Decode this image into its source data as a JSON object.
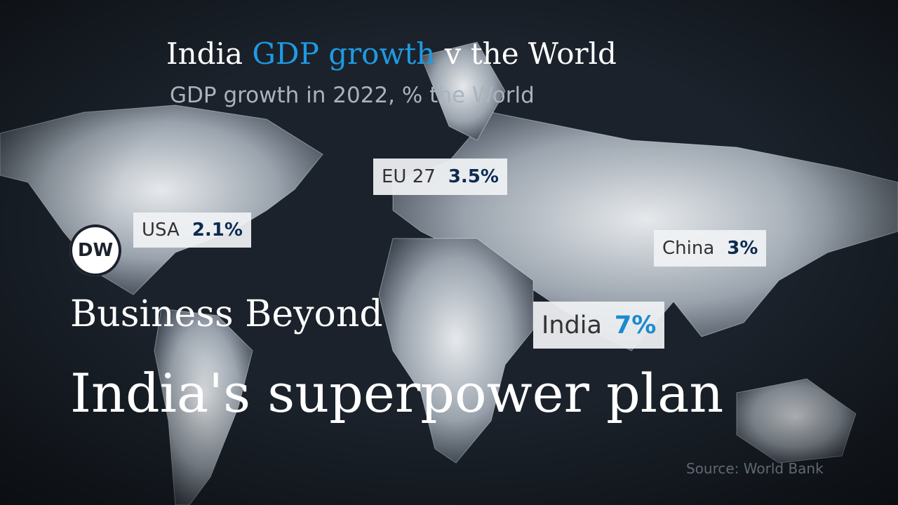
{
  "header": {
    "title": {
      "part1": "India",
      "highlight": "GDP growth",
      "part2": "v the World"
    },
    "subtitle": "GDP growth in 2022, % the World"
  },
  "labels": [
    {
      "region": "EU 27",
      "value": "3.5%"
    },
    {
      "region": "USA",
      "value": "2.1%"
    },
    {
      "region": "China",
      "value": "3%"
    },
    {
      "region": "India",
      "value": "7%"
    }
  ],
  "logo": "DW",
  "show": "Business Beyond",
  "headline": "India's superpower plan",
  "source": "Source: World Bank"
}
